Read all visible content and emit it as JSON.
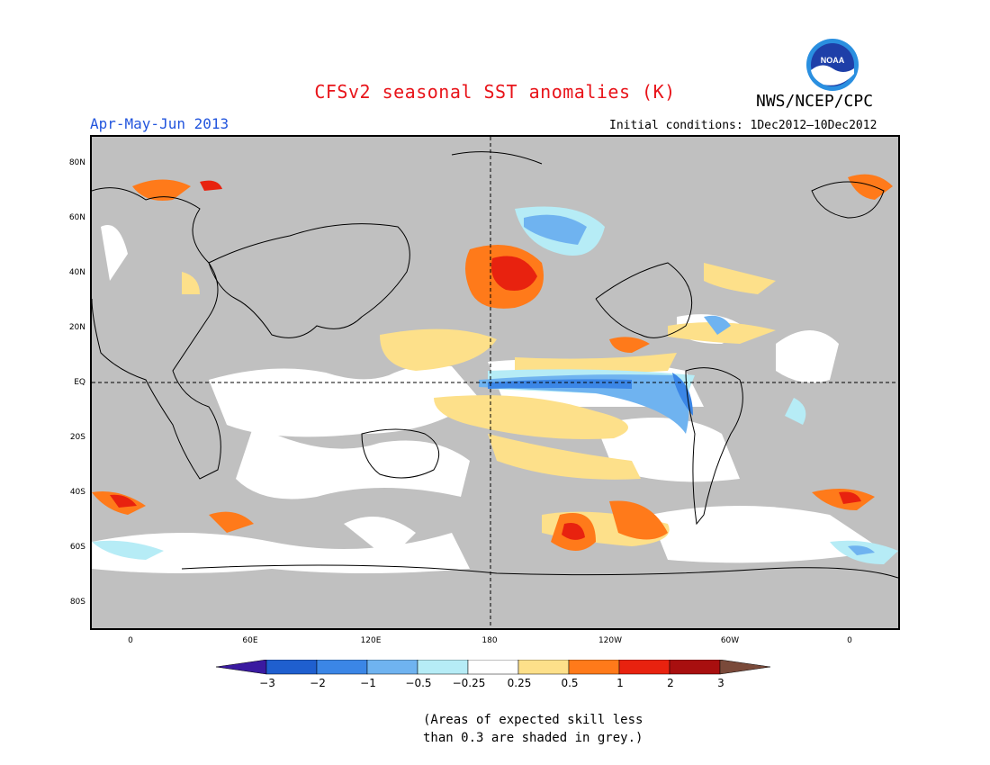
{
  "title": "CFSv2 seasonal SST anomalies (K)",
  "agency": "NWS/NCEP/CPC",
  "logo_text": "NOAA",
  "period": "Apr-May-Jun 2013",
  "initial_conditions": "Initial conditions: 1Dec2012–10Dec2012",
  "lat_labels": [
    "80N",
    "60N",
    "40N",
    "20N",
    "EQ",
    "20S",
    "40S",
    "60S",
    "80S"
  ],
  "lon_labels": [
    "0",
    "60E",
    "120E",
    "180",
    "120W",
    "60W",
    "0"
  ],
  "colorbar": {
    "labels": [
      "−3",
      "−2",
      "−1",
      "−0.5",
      "−0.25",
      "0.25",
      "0.5",
      "1",
      "2",
      "3"
    ],
    "colors": [
      "#3a1aa0",
      "#1f5fcf",
      "#3b86e6",
      "#6fb3f0",
      "#b6ecf6",
      "#ffffff",
      "#fde08a",
      "#ff7a1a",
      "#e8220f",
      "#a80f0f",
      "#7a4a3a"
    ],
    "below_color": "#3a1aa0",
    "above_color": "#7a4a3a"
  },
  "note_line1": "(Areas of expected skill less",
  "note_line2": "than 0.3 are shaded in grey.)",
  "colors": {
    "title": "#e8141a",
    "period": "#2255dd",
    "grey_mask": "#c0c0c0"
  }
}
